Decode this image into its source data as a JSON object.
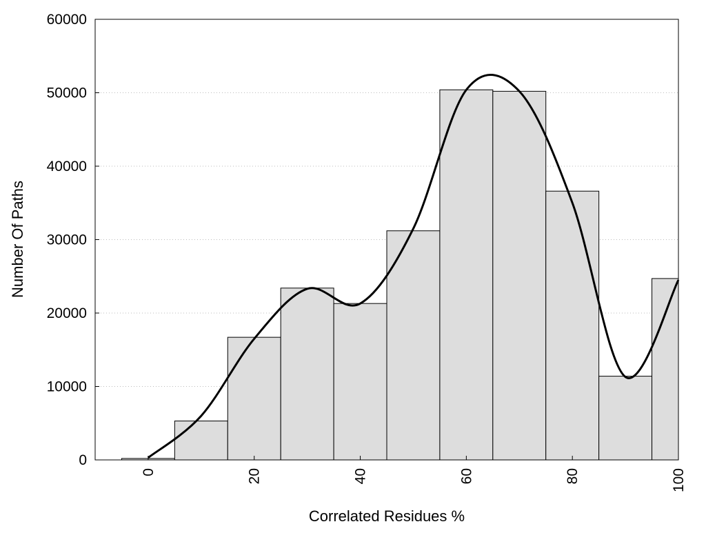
{
  "chart_data": {
    "type": "bar",
    "xlabel": "Correlated Residues %",
    "ylabel": "Number Of Paths",
    "xlim": [
      -10,
      100
    ],
    "ylim": [
      0,
      60000
    ],
    "y_ticks": [
      0,
      10000,
      20000,
      30000,
      40000,
      50000,
      60000
    ],
    "x_ticks": [
      0,
      20,
      40,
      60,
      80,
      100
    ],
    "grid": "horizontal-dotted",
    "bin_width": 10,
    "bins": [
      {
        "x": 0,
        "value": 200
      },
      {
        "x": 10,
        "value": 5300
      },
      {
        "x": 20,
        "value": 16700
      },
      {
        "x": 30,
        "value": 23400
      },
      {
        "x": 40,
        "value": 21300
      },
      {
        "x": 50,
        "value": 31200
      },
      {
        "x": 60,
        "value": 50400
      },
      {
        "x": 70,
        "value": 50200
      },
      {
        "x": 80,
        "value": 36600
      },
      {
        "x": 90,
        "value": 11400
      },
      {
        "x": 100,
        "value": 24700
      }
    ],
    "curve": [
      {
        "x": 0,
        "y": 300
      },
      {
        "x": 10,
        "y": 6000
      },
      {
        "x": 20,
        "y": 16500
      },
      {
        "x": 30,
        "y": 23300
      },
      {
        "x": 40,
        "y": 21300
      },
      {
        "x": 50,
        "y": 31500
      },
      {
        "x": 60,
        "y": 50400
      },
      {
        "x": 70,
        "y": 50200
      },
      {
        "x": 80,
        "y": 35000
      },
      {
        "x": 90,
        "y": 11300
      },
      {
        "x": 100,
        "y": 24500
      }
    ],
    "colors": {
      "bar_fill": "#dddddd",
      "bar_stroke": "#000000",
      "curve": "#000000",
      "grid": "#bbbbbb"
    }
  }
}
